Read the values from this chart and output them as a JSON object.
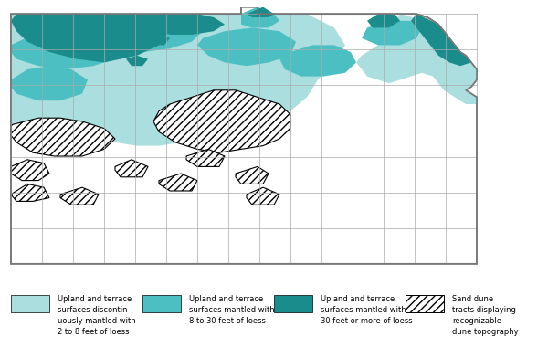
{
  "fig_width": 6.0,
  "fig_height": 3.8,
  "dpi": 100,
  "background_color": "#ffffff",
  "colors": {
    "light_turquoise": "#aadedf",
    "medium_turquoise": "#4bbfc2",
    "dark_turquoise": "#1a8c8c",
    "county_line": "#aaaaaa",
    "state_border": "#777777"
  },
  "legend": [
    {
      "label": "Upland and terrace\nsurfaces discontin-\nuously mantled with\n2 to 8 feet of loess",
      "color": "#aadedf",
      "hatch": null
    },
    {
      "label": "Upland and terrace\nsurfaces mantled with\n8 to 30 feet of loess",
      "color": "#4bbfc2",
      "hatch": null
    },
    {
      "label": "Upland and terrace\nsurfaces mantled with\n30 feet or more of loess",
      "color": "#1a8c8c",
      "hatch": null
    },
    {
      "label": "Sand dune\ntracts displaying\nrecognizable\ndune topography",
      "color": "#ffffff",
      "hatch": "////"
    }
  ]
}
